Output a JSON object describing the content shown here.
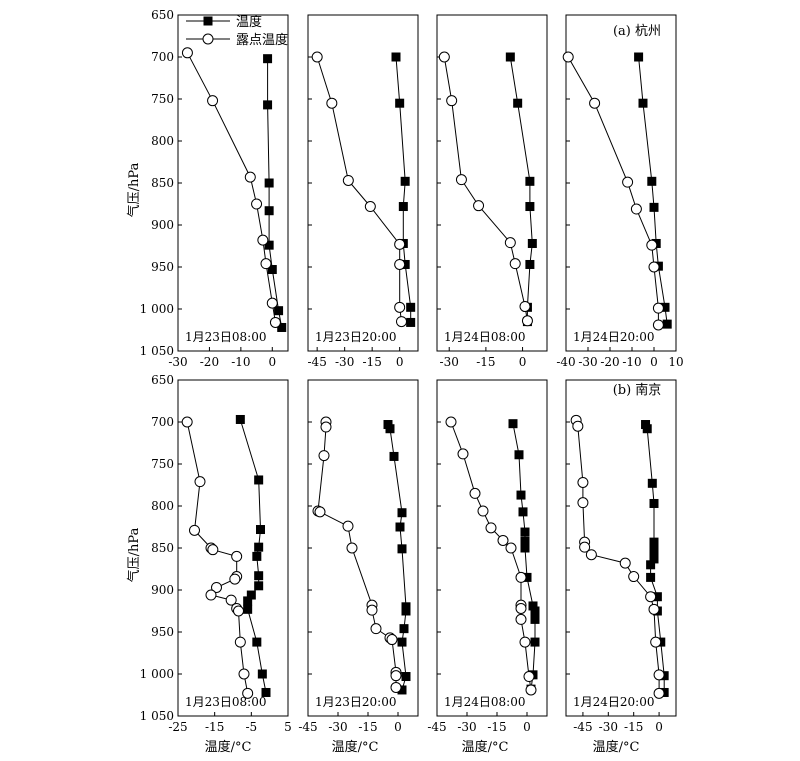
{
  "figure": {
    "ylabel": "气压/hPa",
    "xlabel": "温度/°C",
    "legend": {
      "temperature": "温度",
      "dewpoint": "露点温度"
    },
    "row_labels": [
      "(a) 杭州",
      "(b) 南京"
    ],
    "y_ticks": [
      "650",
      "700",
      "750",
      "800",
      "850",
      "900",
      "950",
      "1 000",
      "1 050"
    ],
    "colors": {
      "axis": "#000000",
      "marker": "#000000",
      "marker_fill_open": "#ffffff"
    }
  },
  "chart_data": [
    {
      "type": "line",
      "row": 0,
      "col": 0,
      "annotation": "1月23日08:00",
      "ylim": [
        650,
        1050
      ],
      "xlim": [
        -30,
        5
      ],
      "xticks": [
        "-30",
        "-20",
        "-10",
        "0"
      ],
      "xtick_values": [
        -30,
        -20,
        -10,
        0
      ],
      "series": [
        {
          "name": "温度",
          "points": [
            [
              -1.5,
              702
            ],
            [
              -1.5,
              757
            ],
            [
              -1,
              850
            ],
            [
              -1,
              883
            ],
            [
              -1,
              924
            ],
            [
              0,
              953
            ],
            [
              2,
              1002
            ],
            [
              3,
              1022
            ]
          ]
        },
        {
          "name": "露点温度",
          "points": [
            [
              -27,
              695
            ],
            [
              -19,
              752
            ],
            [
              -7,
              843
            ],
            [
              -5,
              875
            ],
            [
              -3,
              918
            ],
            [
              -2,
              946
            ],
            [
              0,
              993
            ],
            [
              1,
              1016
            ]
          ]
        }
      ]
    },
    {
      "type": "line",
      "row": 0,
      "col": 1,
      "annotation": "1月23日20:00",
      "ylim": [
        650,
        1050
      ],
      "xlim": [
        -50,
        10
      ],
      "xticks": [
        "-45",
        "-30",
        "-15",
        "0"
      ],
      "xtick_values": [
        -45,
        -30,
        -15,
        0
      ],
      "series": [
        {
          "name": "温度",
          "points": [
            [
              -2,
              700
            ],
            [
              0,
              755
            ],
            [
              3,
              848
            ],
            [
              2,
              878
            ],
            [
              2,
              922
            ],
            [
              3,
              947
            ],
            [
              6,
              998
            ],
            [
              6,
              1016
            ]
          ]
        },
        {
          "name": "露点温度",
          "points": [
            [
              -45,
              700
            ],
            [
              -37,
              755
            ],
            [
              -28,
              847
            ],
            [
              -16,
              878
            ],
            [
              0,
              923
            ],
            [
              0,
              947
            ],
            [
              0,
              998
            ],
            [
              1,
              1015
            ]
          ]
        }
      ]
    },
    {
      "type": "line",
      "row": 0,
      "col": 2,
      "annotation": "1月24日08:00",
      "ylim": [
        650,
        1050
      ],
      "xlim": [
        -35,
        10
      ],
      "xticks": [
        "-30",
        "-15",
        "0"
      ],
      "xtick_values": [
        -30,
        -15,
        0
      ],
      "series": [
        {
          "name": "温度",
          "points": [
            [
              -5,
              700
            ],
            [
              -2,
              755
            ],
            [
              3,
              848
            ],
            [
              3,
              878
            ],
            [
              4,
              922
            ],
            [
              3,
              947
            ],
            [
              2,
              998
            ],
            [
              2,
              1015
            ]
          ]
        },
        {
          "name": "露点温度",
          "points": [
            [
              -32,
              700
            ],
            [
              -29,
              752
            ],
            [
              -25,
              846
            ],
            [
              -18,
              877
            ],
            [
              -5,
              921
            ],
            [
              -3,
              946
            ],
            [
              1,
              997
            ],
            [
              2,
              1014
            ]
          ]
        }
      ]
    },
    {
      "type": "line",
      "row": 0,
      "col": 3,
      "annotation": "1月24日20:00",
      "ylim": [
        650,
        1050
      ],
      "xlim": [
        -40,
        10
      ],
      "xticks": [
        "-40",
        "-30",
        "-20",
        "-10",
        "0",
        "10"
      ],
      "xtick_values": [
        -40,
        -30,
        -20,
        -10,
        0,
        10
      ],
      "series": [
        {
          "name": "温度",
          "points": [
            [
              -7,
              700
            ],
            [
              -5,
              755
            ],
            [
              -1,
              848
            ],
            [
              0,
              879
            ],
            [
              1,
              922
            ],
            [
              2,
              949
            ],
            [
              5,
              998
            ],
            [
              6,
              1018
            ]
          ]
        },
        {
          "name": "露点温度",
          "points": [
            [
              -39,
              700
            ],
            [
              -27,
              755
            ],
            [
              -12,
              849
            ],
            [
              -8,
              881
            ],
            [
              -1,
              924
            ],
            [
              0,
              950
            ],
            [
              2,
              999
            ],
            [
              2,
              1019
            ]
          ]
        }
      ]
    },
    {
      "type": "line",
      "row": 1,
      "col": 0,
      "annotation": "1月23日08:00",
      "ylim": [
        650,
        1050
      ],
      "xlim": [
        -25,
        5
      ],
      "xticks": [
        "-25",
        "-15",
        "-5",
        "5"
      ],
      "xtick_values": [
        -25,
        -15,
        -5,
        5
      ],
      "series": [
        {
          "name": "温度",
          "points": [
            [
              -8,
              697
            ],
            [
              -3,
              769
            ],
            [
              -2.5,
              828
            ],
            [
              -3,
              849
            ],
            [
              -3.5,
              860
            ],
            [
              -3,
              883
            ],
            [
              -3,
              895
            ],
            [
              -5,
              906
            ],
            [
              -6,
              913
            ],
            [
              -6,
              923
            ],
            [
              -3.5,
              962
            ],
            [
              -2,
              1000
            ],
            [
              -1,
              1022
            ]
          ]
        },
        {
          "name": "露点温度",
          "points": [
            [
              -22.5,
              700
            ],
            [
              -19,
              771
            ],
            [
              -20.5,
              829
            ],
            [
              -16,
              850
            ],
            [
              -15.5,
              852
            ],
            [
              -9,
              860
            ],
            [
              -9,
              884
            ],
            [
              -9.5,
              887
            ],
            [
              -14.5,
              897
            ],
            [
              -16,
              906
            ],
            [
              -10.5,
              912
            ],
            [
              -9,
              922
            ],
            [
              -8.5,
              925
            ],
            [
              -8,
              962
            ],
            [
              -7,
              1000
            ],
            [
              -6,
              1023
            ]
          ]
        }
      ]
    },
    {
      "type": "line",
      "row": 1,
      "col": 1,
      "annotation": "1月23日20:00",
      "ylim": [
        650,
        1050
      ],
      "xlim": [
        -45,
        10
      ],
      "xticks": [
        "-45",
        "-30",
        "-15",
        "0"
      ],
      "xtick_values": [
        -45,
        -30,
        -15,
        0
      ],
      "series": [
        {
          "name": "温度",
          "points": [
            [
              -5,
              703
            ],
            [
              -4,
              708
            ],
            [
              -2,
              741
            ],
            [
              2,
              808
            ],
            [
              1,
              825
            ],
            [
              2,
              851
            ],
            [
              4,
              920
            ],
            [
              4,
              925
            ],
            [
              3,
              946
            ],
            [
              2,
              962
            ],
            [
              4,
              1003
            ],
            [
              2,
              1019
            ]
          ]
        },
        {
          "name": "露点温度",
          "points": [
            [
              -36,
              700
            ],
            [
              -36,
              706
            ],
            [
              -37,
              740
            ],
            [
              -40,
              806
            ],
            [
              -39,
              807
            ],
            [
              -25,
              824
            ],
            [
              -23,
              850
            ],
            [
              -13,
              918
            ],
            [
              -13,
              924
            ],
            [
              -11,
              946
            ],
            [
              -4,
              957
            ],
            [
              -3,
              959
            ],
            [
              -1,
              998
            ],
            [
              -1,
              1002
            ],
            [
              -1,
              1016
            ]
          ]
        }
      ]
    },
    {
      "type": "line",
      "row": 1,
      "col": 2,
      "annotation": "1月24日08:00",
      "ylim": [
        650,
        1050
      ],
      "xlim": [
        -45,
        10
      ],
      "xticks": [
        "-45",
        "-30",
        "-15",
        "0"
      ],
      "xtick_values": [
        -45,
        -30,
        -15,
        0
      ],
      "series": [
        {
          "name": "温度",
          "points": [
            [
              -7,
              702
            ],
            [
              -4,
              739
            ],
            [
              -3,
              787
            ],
            [
              -2,
              807
            ],
            [
              -1,
              831
            ],
            [
              -1,
              842
            ],
            [
              -1,
              850
            ],
            [
              0,
              885
            ],
            [
              3,
              919
            ],
            [
              4,
              925
            ],
            [
              4,
              935
            ],
            [
              4,
              962
            ],
            [
              3,
              1001
            ],
            [
              2,
              1018
            ]
          ]
        },
        {
          "name": "露点温度",
          "points": [
            [
              -38,
              700
            ],
            [
              -32,
              738
            ],
            [
              -26,
              785
            ],
            [
              -22,
              806
            ],
            [
              -18,
              826
            ],
            [
              -12,
              841
            ],
            [
              -8,
              850
            ],
            [
              -3,
              885
            ],
            [
              -3,
              918
            ],
            [
              -3,
              922
            ],
            [
              -3,
              935
            ],
            [
              -1,
              962
            ],
            [
              1,
              1003
            ],
            [
              2,
              1019
            ]
          ]
        }
      ]
    },
    {
      "type": "line",
      "row": 1,
      "col": 3,
      "annotation": "1月24日20:00",
      "ylim": [
        650,
        1050
      ],
      "xlim": [
        -55,
        10
      ],
      "xticks": [
        "-45",
        "-30",
        "-15",
        "0"
      ],
      "xtick_values": [
        -45,
        -30,
        -15,
        0
      ],
      "series": [
        {
          "name": "温度",
          "points": [
            [
              -8,
              703
            ],
            [
              -7,
              708
            ],
            [
              -4,
              773
            ],
            [
              -3,
              797
            ],
            [
              -3,
              843
            ],
            [
              -3,
              849
            ],
            [
              -3,
              857
            ],
            [
              -3,
              863
            ],
            [
              -5,
              870
            ],
            [
              -5,
              885
            ],
            [
              -1,
              908
            ],
            [
              -1,
              925
            ],
            [
              1,
              962
            ],
            [
              3,
              1002
            ],
            [
              3,
              1022
            ]
          ]
        },
        {
          "name": "露点温度",
          "points": [
            [
              -49,
              698
            ],
            [
              -48,
              705
            ],
            [
              -45,
              772
            ],
            [
              -45,
              796
            ],
            [
              -44,
              843
            ],
            [
              -44,
              849
            ],
            [
              -40,
              858
            ],
            [
              -20,
              868
            ],
            [
              -15,
              884
            ],
            [
              -5,
              908
            ],
            [
              -3,
              923
            ],
            [
              -2,
              962
            ],
            [
              0,
              1001
            ],
            [
              0,
              1023
            ]
          ]
        }
      ]
    }
  ]
}
